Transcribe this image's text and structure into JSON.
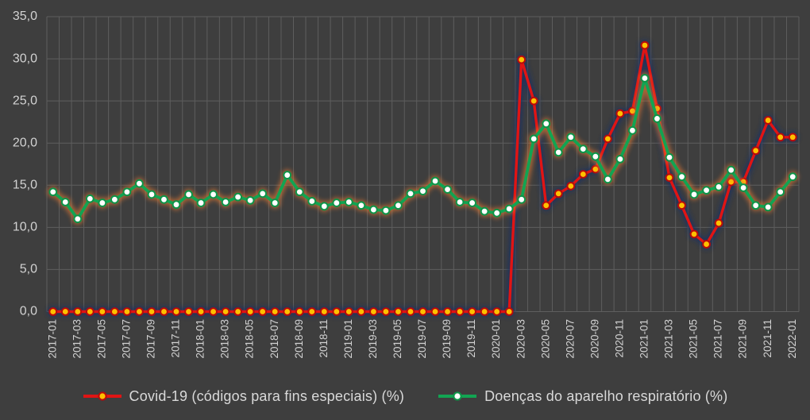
{
  "chart_data": {
    "type": "line",
    "title": "",
    "xlabel": "",
    "ylabel": "",
    "ylim": [
      0,
      35
    ],
    "grid": true,
    "legend_position": "bottom",
    "y_tick_values": [
      0,
      5,
      10,
      15,
      20,
      25,
      30,
      35
    ],
    "y_tick_labels": [
      "0,0",
      "5,0",
      "10,0",
      "15,0",
      "20,0",
      "25,0",
      "30,0",
      "35,0"
    ],
    "x": [
      "2017-01",
      "2017-02",
      "2017-03",
      "2017-04",
      "2017-05",
      "2017-06",
      "2017-07",
      "2017-08",
      "2017-09",
      "2017-10",
      "2017-11",
      "2017-12",
      "2018-01",
      "2018-02",
      "2018-03",
      "2018-04",
      "2018-05",
      "2018-06",
      "2018-07",
      "2018-08",
      "2018-09",
      "2018-10",
      "2018-11",
      "2018-12",
      "2019-01",
      "2019-02",
      "2019-03",
      "2019-04",
      "2019-05",
      "2019-06",
      "2019-07",
      "2019-08",
      "2019-09",
      "2019-10",
      "2019-11",
      "2019-12",
      "2020-01",
      "2020-02",
      "2020-03",
      "2020-04",
      "2020-05",
      "2020-06",
      "2020-07",
      "2020-08",
      "2020-09",
      "2020-10",
      "2020-11",
      "2020-12",
      "2021-01",
      "2021-02",
      "2021-03",
      "2021-04",
      "2021-05",
      "2021-06",
      "2021-07",
      "2021-08",
      "2021-09",
      "2021-10",
      "2021-11",
      "2021-12",
      "2022-01"
    ],
    "x_tick_step": 2,
    "series": [
      {
        "name": "Covid-19 (códigos para fins especiais) (%)",
        "color": "#e01414",
        "marker_fill": "#ffc000",
        "marker_stroke": "#b80b0b",
        "glow_color": "#1f3060",
        "values": [
          0.0,
          0.0,
          0.0,
          0.0,
          0.0,
          0.0,
          0.0,
          0.0,
          0.0,
          0.0,
          0.0,
          0.0,
          0.0,
          0.0,
          0.0,
          0.0,
          0.0,
          0.0,
          0.0,
          0.0,
          0.0,
          0.0,
          0.0,
          0.0,
          0.0,
          0.0,
          0.0,
          0.0,
          0.0,
          0.0,
          0.0,
          0.0,
          0.0,
          0.0,
          0.0,
          0.0,
          0.0,
          0.0,
          29.9,
          25.0,
          12.6,
          14.0,
          14.9,
          16.3,
          16.9,
          20.5,
          23.5,
          23.8,
          31.6,
          24.1,
          15.9,
          12.6,
          9.2,
          8.0,
          10.5,
          15.4,
          15.4,
          19.1,
          22.7,
          20.7,
          20.7
        ]
      },
      {
        "name": "Doenças do aparelho respiratório (%)",
        "color": "#12a452",
        "marker_fill": "#ffffff",
        "marker_stroke": "#0e9448",
        "glow_color": "#ed7d31",
        "values": [
          14.2,
          13.0,
          11.0,
          13.4,
          12.9,
          13.3,
          14.2,
          15.2,
          13.9,
          13.3,
          12.7,
          13.9,
          12.9,
          13.9,
          13.0,
          13.6,
          13.2,
          14.0,
          12.9,
          16.2,
          14.2,
          13.1,
          12.5,
          12.9,
          13.0,
          12.6,
          12.1,
          12.0,
          12.6,
          14.0,
          14.3,
          15.5,
          14.5,
          13.0,
          12.9,
          11.9,
          11.7,
          12.2,
          13.3,
          20.5,
          22.3,
          18.9,
          20.7,
          19.3,
          18.4,
          15.7,
          18.1,
          21.5,
          27.7,
          22.9,
          18.3,
          16.0,
          13.9,
          14.4,
          14.8,
          16.8,
          14.7,
          12.6,
          12.4,
          14.2,
          16.0
        ]
      }
    ],
    "colors": {
      "background": "#3e3e3e",
      "gridline": "#5e5e5e",
      "axis_text": "#d2d2d2",
      "legend_text": "#d9d9d9"
    }
  }
}
